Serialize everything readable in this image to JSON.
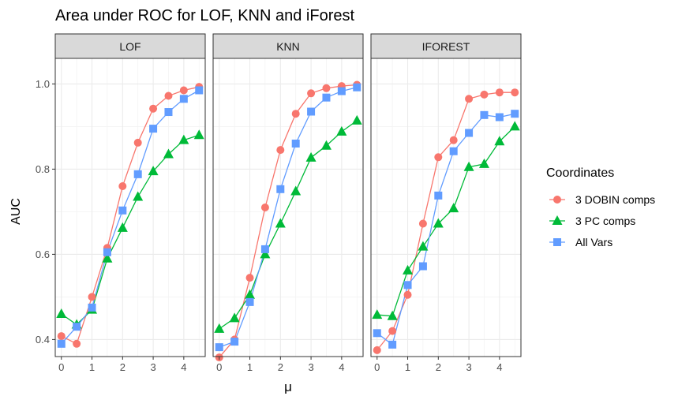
{
  "chart_data": {
    "type": "line",
    "title": "Area under ROC for LOF, KNN and iForest",
    "xlabel": "μ",
    "ylabel": "AUC",
    "x": [
      0,
      0.5,
      1,
      1.5,
      2,
      2.5,
      3,
      3.5,
      4,
      4.5
    ],
    "x_ticks": [
      0,
      1,
      2,
      3,
      4
    ],
    "x_tick_labels": [
      "0",
      "1",
      "2",
      "3",
      "4"
    ],
    "xlim": [
      -0.2,
      4.7
    ],
    "y_ticks": [
      0.4,
      0.6,
      0.8,
      1.0
    ],
    "y_tick_labels": [
      "0.4",
      "0.6",
      "0.8",
      "1.0"
    ],
    "ylim": [
      0.36,
      1.06
    ],
    "grid": true,
    "legend": {
      "title": "Coordinates",
      "placement": "right",
      "entries": [
        "3 DOBIN comps",
        "3 PC comps",
        "All Vars"
      ]
    },
    "colors": {
      "3 DOBIN comps": "#F8766D",
      "3 PC comps": "#00BA38",
      "All Vars": "#619CFF"
    },
    "markers": {
      "3 DOBIN comps": "circle",
      "3 PC comps": "triangle",
      "All Vars": "square"
    },
    "panels": [
      {
        "label": "LOF",
        "series": [
          {
            "name": "3 DOBIN comps",
            "values": [
              0.408,
              0.39,
              0.5,
              0.615,
              0.76,
              0.862,
              0.942,
              0.972,
              0.985,
              0.993
            ]
          },
          {
            "name": "3 PC comps",
            "values": [
              0.46,
              0.435,
              0.47,
              0.59,
              0.662,
              0.735,
              0.795,
              0.835,
              0.868,
              0.88
            ]
          },
          {
            "name": "All Vars",
            "values": [
              0.39,
              0.43,
              0.475,
              0.605,
              0.703,
              0.788,
              0.895,
              0.934,
              0.965,
              0.985
            ]
          }
        ]
      },
      {
        "label": "KNN",
        "series": [
          {
            "name": "3 DOBIN comps",
            "values": [
              0.358,
              0.4,
              0.545,
              0.71,
              0.845,
              0.93,
              0.978,
              0.99,
              0.995,
              0.998
            ]
          },
          {
            "name": "3 PC comps",
            "values": [
              0.425,
              0.45,
              0.505,
              0.6,
              0.672,
              0.748,
              0.827,
              0.855,
              0.888,
              0.914
            ]
          },
          {
            "name": "All Vars",
            "values": [
              0.382,
              0.395,
              0.488,
              0.612,
              0.753,
              0.86,
              0.935,
              0.968,
              0.983,
              0.992
            ]
          }
        ]
      },
      {
        "label": "IFOREST",
        "series": [
          {
            "name": "3 DOBIN comps",
            "values": [
              0.375,
              0.42,
              0.505,
              0.672,
              0.828,
              0.868,
              0.965,
              0.975,
              0.98,
              0.98
            ]
          },
          {
            "name": "3 PC comps",
            "values": [
              0.458,
              0.455,
              0.562,
              0.618,
              0.672,
              0.708,
              0.805,
              0.812,
              0.865,
              0.9
            ]
          },
          {
            "name": "All Vars",
            "values": [
              0.415,
              0.388,
              0.528,
              0.572,
              0.738,
              0.842,
              0.885,
              0.927,
              0.922,
              0.93
            ]
          }
        ]
      }
    ]
  }
}
